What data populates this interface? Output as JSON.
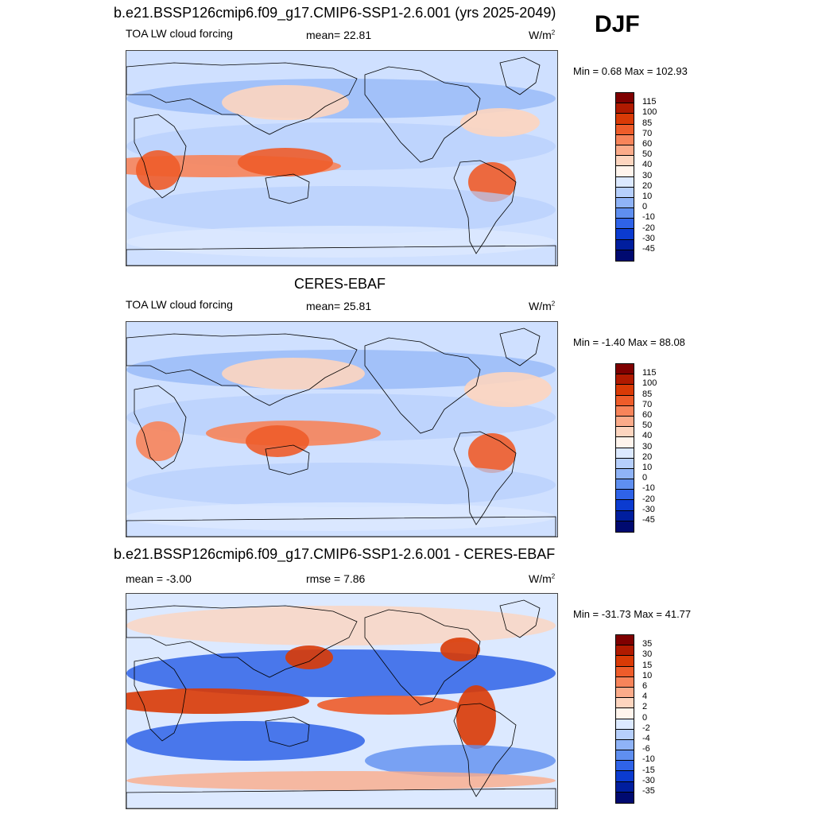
{
  "season": "DJF",
  "panels": [
    {
      "id": "model",
      "title": "b.e21.BSSP126cmip6.f09_g17.CMIP6-SSP1-2.6.001 (yrs 2025-2049)",
      "left_label": "TOA LW cloud forcing",
      "mid_label": "mean=  22.81",
      "units": "W/m",
      "units_sup": "2",
      "minmax": "Min =   0.68 Max = 102.93",
      "colorbar_ticks": [
        "115",
        "100",
        "85",
        "70",
        "60",
        "50",
        "40",
        "30",
        "20",
        "10",
        "0",
        "-10",
        "-20",
        "-30",
        "-45"
      ]
    },
    {
      "id": "obs",
      "title": "CERES-EBAF",
      "left_label": "TOA LW cloud forcing",
      "mid_label": "mean=  25.81",
      "units": "W/m",
      "units_sup": "2",
      "minmax": "Min =  -1.40 Max =  88.08",
      "colorbar_ticks": [
        "115",
        "100",
        "85",
        "70",
        "60",
        "50",
        "40",
        "30",
        "20",
        "10",
        "0",
        "-10",
        "-20",
        "-30",
        "-45"
      ]
    },
    {
      "id": "diff",
      "title": "b.e21.BSSP126cmip6.f09_g17.CMIP6-SSP1-2.6.001 - CERES-EBAF",
      "left_label": "mean =  -3.00",
      "mid_label": "rmse =   7.86",
      "units": "W/m",
      "units_sup": "2",
      "minmax": "Min = -31.73 Max =  41.77",
      "colorbar_ticks": [
        "35",
        "30",
        "15",
        "10",
        "6",
        "4",
        "2",
        "0",
        "-2",
        "-4",
        "-6",
        "-10",
        "-15",
        "-30",
        "-35"
      ]
    }
  ],
  "colors": {
    "colorbar_top_to_bottom": [
      "#7f0000",
      "#b01a00",
      "#d93a06",
      "#ee5c2a",
      "#f7845a",
      "#fbab8a",
      "#fdd5bf",
      "#fff4ec",
      "#dce9ff",
      "#b6cffc",
      "#8fb3f7",
      "#5f8ff0",
      "#2f63e8",
      "#0b3bd0",
      "#001e9e",
      "#000a70"
    ],
    "map_background": "#cfe0ff",
    "land_outline": "#000000"
  },
  "chart_data": [
    {
      "type": "heatmap",
      "title": "b.e21.BSSP126cmip6.f09_g17.CMIP6-SSP1-2.6.001 (yrs 2025-2049)",
      "variable": "TOA LW cloud forcing",
      "units": "W/m2",
      "mean": 22.81,
      "min": 0.68,
      "max": 102.93,
      "colorbar_levels": [
        -45,
        -30,
        -20,
        -10,
        0,
        10,
        20,
        30,
        40,
        50,
        60,
        70,
        85,
        100,
        115
      ]
    },
    {
      "type": "heatmap",
      "title": "CERES-EBAF",
      "variable": "TOA LW cloud forcing",
      "units": "W/m2",
      "mean": 25.81,
      "min": -1.4,
      "max": 88.08,
      "colorbar_levels": [
        -45,
        -30,
        -20,
        -10,
        0,
        10,
        20,
        30,
        40,
        50,
        60,
        70,
        85,
        100,
        115
      ]
    },
    {
      "type": "heatmap",
      "title": "b.e21.BSSP126cmip6.f09_g17.CMIP6-SSP1-2.6.001 - CERES-EBAF",
      "units": "W/m2",
      "mean": -3.0,
      "rmse": 7.86,
      "min": -31.73,
      "max": 41.77,
      "colorbar_levels": [
        -35,
        -30,
        -15,
        -10,
        -6,
        -4,
        -2,
        0,
        2,
        4,
        6,
        10,
        15,
        30,
        35
      ]
    }
  ]
}
